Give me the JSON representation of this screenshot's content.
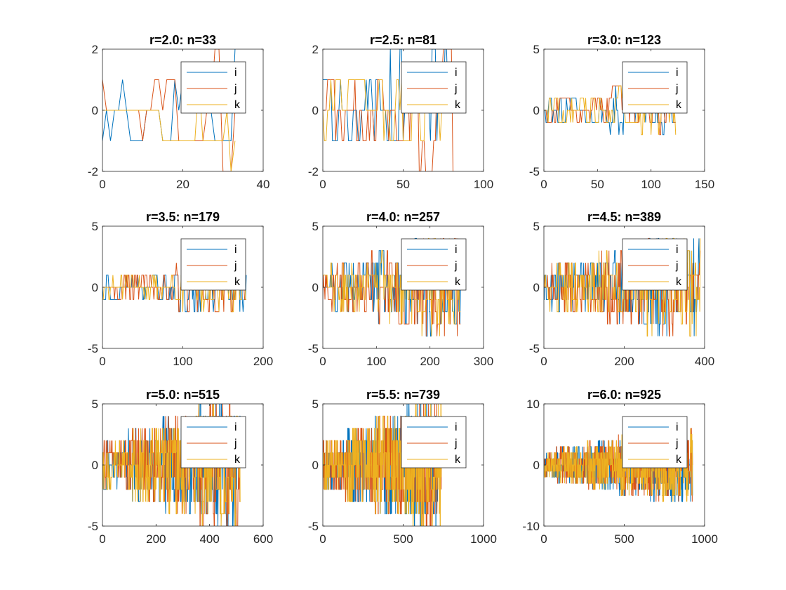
{
  "colors": {
    "i": "#0072BD",
    "j": "#D95319",
    "k": "#EDB120",
    "axis": "#262626"
  },
  "chart_data": [
    {
      "type": "line",
      "title": "r=2.0: n=33",
      "n": 33,
      "r": 2.0,
      "xlim": [
        0,
        40
      ],
      "ylim": [
        -2,
        2
      ],
      "xticks": [
        0,
        20,
        40
      ],
      "yticks": [
        -2,
        0,
        2
      ],
      "xtick_labels": [
        "0",
        "20",
        "40"
      ],
      "ytick_labels": [
        "-2",
        "0",
        "2"
      ],
      "legend": [
        "i",
        "j",
        "k"
      ],
      "legend_position": "top-right",
      "amplitude_range": [
        -2,
        2
      ],
      "grid": false
    },
    {
      "type": "line",
      "title": "r=2.5: n=81",
      "n": 81,
      "r": 2.5,
      "xlim": [
        0,
        100
      ],
      "ylim": [
        -2,
        2
      ],
      "xticks": [
        0,
        50,
        100
      ],
      "yticks": [
        -2,
        0,
        2
      ],
      "xtick_labels": [
        "0",
        "50",
        "100"
      ],
      "ytick_labels": [
        "-2",
        "0",
        "2"
      ],
      "legend": [
        "i",
        "j",
        "k"
      ],
      "legend_position": "top-right",
      "amplitude_range": [
        -2,
        2
      ],
      "grid": false
    },
    {
      "type": "line",
      "title": "r=3.0: n=123",
      "n": 123,
      "r": 3.0,
      "xlim": [
        0,
        150
      ],
      "ylim": [
        -5,
        5
      ],
      "xticks": [
        0,
        50,
        100,
        150
      ],
      "yticks": [
        -5,
        0,
        5
      ],
      "xtick_labels": [
        "0",
        "50",
        "100",
        "150"
      ],
      "ytick_labels": [
        "-5",
        "0",
        "5"
      ],
      "legend": [
        "i",
        "j",
        "k"
      ],
      "legend_position": "top-right",
      "amplitude_range": [
        -3,
        2
      ],
      "grid": false
    },
    {
      "type": "line",
      "title": "r=3.5: n=179",
      "n": 179,
      "r": 3.5,
      "xlim": [
        0,
        200
      ],
      "ylim": [
        -5,
        5
      ],
      "xticks": [
        0,
        100,
        200
      ],
      "yticks": [
        -5,
        0,
        5
      ],
      "xtick_labels": [
        "0",
        "100",
        "200"
      ],
      "ytick_labels": [
        "-5",
        "0",
        "5"
      ],
      "legend": [
        "i",
        "j",
        "k"
      ],
      "legend_position": "top-right",
      "amplitude_range": [
        -3,
        2
      ],
      "grid": false
    },
    {
      "type": "line",
      "title": "r=4.0: n=257",
      "n": 257,
      "r": 4.0,
      "xlim": [
        0,
        300
      ],
      "ylim": [
        -5,
        5
      ],
      "xticks": [
        0,
        100,
        200,
        300
      ],
      "yticks": [
        -5,
        0,
        5
      ],
      "xtick_labels": [
        "0",
        "100",
        "200",
        "300"
      ],
      "ytick_labels": [
        "-5",
        "0",
        "5"
      ],
      "legend": [
        "i",
        "j",
        "k"
      ],
      "legend_position": "top-right",
      "amplitude_range": [
        -4,
        4
      ],
      "grid": false
    },
    {
      "type": "line",
      "title": "r=4.5: n=389",
      "n": 389,
      "r": 4.5,
      "xlim": [
        0,
        400
      ],
      "ylim": [
        -5,
        5
      ],
      "xticks": [
        0,
        200,
        400
      ],
      "yticks": [
        -5,
        0,
        5
      ],
      "xtick_labels": [
        "0",
        "200",
        "400"
      ],
      "ytick_labels": [
        "-5",
        "0",
        "5"
      ],
      "legend": [
        "i",
        "j",
        "k"
      ],
      "legend_position": "top-right",
      "amplitude_range": [
        -4,
        4
      ],
      "grid": false
    },
    {
      "type": "line",
      "title": "r=5.0: n=515",
      "n": 515,
      "r": 5.0,
      "xlim": [
        0,
        600
      ],
      "ylim": [
        -5,
        5
      ],
      "xticks": [
        0,
        200,
        400,
        600
      ],
      "yticks": [
        -5,
        0,
        5
      ],
      "xtick_labels": [
        "0",
        "200",
        "400",
        "600"
      ],
      "ytick_labels": [
        "-5",
        "0",
        "5"
      ],
      "legend": [
        "i",
        "j",
        "k"
      ],
      "legend_position": "top-right",
      "amplitude_range": [
        -5,
        5
      ],
      "grid": false
    },
    {
      "type": "line",
      "title": "r=5.5: n=739",
      "n": 739,
      "r": 5.5,
      "xlim": [
        0,
        1000
      ],
      "ylim": [
        -5,
        5
      ],
      "xticks": [
        0,
        500,
        1000
      ],
      "yticks": [
        -5,
        0,
        5
      ],
      "xtick_labels": [
        "0",
        "500",
        "1000"
      ],
      "ytick_labels": [
        "-5",
        "0",
        "5"
      ],
      "legend": [
        "i",
        "j",
        "k"
      ],
      "legend_position": "top-right",
      "amplitude_range": [
        -5,
        5
      ],
      "grid": false
    },
    {
      "type": "line",
      "title": "r=6.0: n=925",
      "n": 925,
      "r": 6.0,
      "xlim": [
        0,
        1000
      ],
      "ylim": [
        -10,
        10
      ],
      "xticks": [
        0,
        500,
        1000
      ],
      "yticks": [
        -10,
        0,
        10
      ],
      "xtick_labels": [
        "0",
        "500",
        "1000"
      ],
      "ytick_labels": [
        "-10",
        "0",
        "10"
      ],
      "legend": [
        "i",
        "j",
        "k"
      ],
      "legend_position": "top-right",
      "amplitude_range": [
        -6,
        6
      ],
      "grid": false
    }
  ]
}
